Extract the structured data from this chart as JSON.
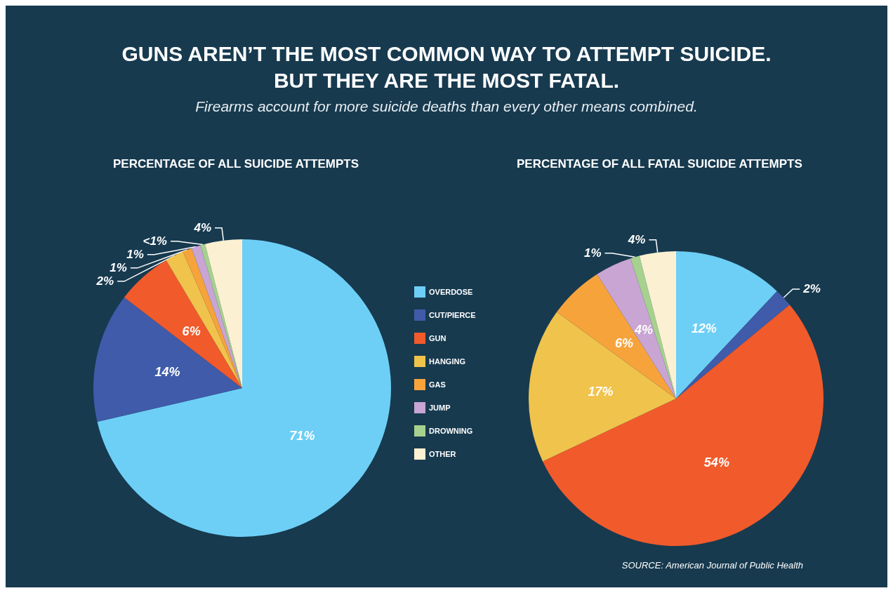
{
  "chart_data": {
    "type": "pie",
    "title": "GUNS AREN’T THE MOST COMMON WAY TO ATTEMPT SUICIDE. BUT THEY ARE THE MOST FATAL.",
    "subtitle": "Firearms account for more suicide deaths than every other means combined.",
    "annotations": [
      "SOURCE: American Journal of Public Health"
    ],
    "categories": [
      "OVERDOSE",
      "CUT/PIERCE",
      "GUN",
      "HANGING",
      "GAS",
      "JUMP",
      "DROWNING",
      "OTHER"
    ],
    "colors": [
      "#6dcff6",
      "#3f5ba9",
      "#f15a2b",
      "#f0c34c",
      "#f7a33c",
      "#c8a5d3",
      "#a6d18e",
      "#fbf0d2"
    ],
    "legend": "right",
    "series": [
      {
        "name": "PERCENTAGE OF ALL SUICIDE ATTEMPTS",
        "values": [
          71,
          14,
          6,
          2,
          1,
          1,
          0.5,
          4
        ],
        "value_labels": [
          "71%",
          "14%",
          "6%",
          "2%",
          "1%",
          "1%",
          "<1%",
          "4%"
        ]
      },
      {
        "name": "PERCENTAGE OF ALL FATAL SUICIDE ATTEMPTS",
        "values": [
          12,
          2,
          54,
          17,
          6,
          4,
          1,
          4
        ],
        "value_labels": [
          "12%",
          "2%",
          "54%",
          "17%",
          "6%",
          "4%",
          "1%",
          "4%"
        ]
      }
    ]
  }
}
